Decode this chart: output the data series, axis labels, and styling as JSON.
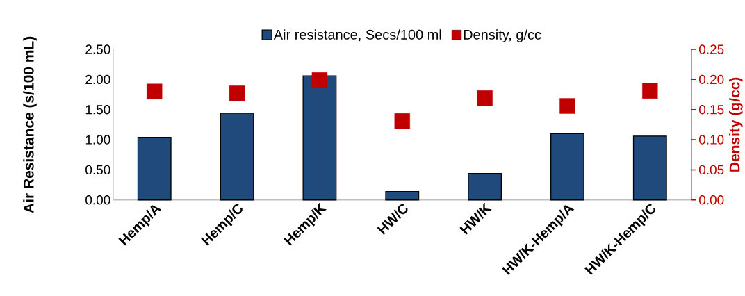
{
  "chart_data": {
    "type": "bar",
    "categories": [
      "Hemp/A",
      "Hemp/C",
      "Hemp/K",
      "HW/C",
      "HW/K",
      "HW/K-Hemp/A",
      "HW/K-Hemp/C"
    ],
    "series": [
      {
        "name": "Air resistance, Secs/100 ml",
        "color": "#214a7c",
        "values": [
          1.04,
          1.44,
          2.06,
          0.14,
          0.44,
          1.1,
          1.06
        ]
      },
      {
        "name": "Density, g/cc",
        "type": "scatter",
        "axis": "y2",
        "color": "#c00000",
        "values": [
          0.18,
          0.177,
          0.199,
          0.131,
          0.169,
          0.156,
          0.181
        ]
      }
    ],
    "ylabel": "Air Resistance (s/100 mL)",
    "y2label": "Density (g/cc)",
    "ylim": [
      0,
      2.5
    ],
    "yticks": [
      {
        "value": 0,
        "label": "0.00"
      },
      {
        "value": 0.5,
        "label": "0.50"
      },
      {
        "value": 1,
        "label": "1.00"
      },
      {
        "value": 1.5,
        "label": "1.50"
      },
      {
        "value": 2,
        "label": "2.00"
      },
      {
        "value": 2.5,
        "label": "2.50"
      }
    ],
    "y2lim": [
      0,
      0.25
    ],
    "y2ticks": [
      {
        "value": 0,
        "label": "0.00"
      },
      {
        "value": 0.05,
        "label": "0.05"
      },
      {
        "value": 0.1,
        "label": "0.10"
      },
      {
        "value": 0.15,
        "label": "0.15"
      },
      {
        "value": 0.2,
        "label": "0.20"
      },
      {
        "value": 0.25,
        "label": "0.25"
      }
    ],
    "legend": "top",
    "marker": "square"
  }
}
